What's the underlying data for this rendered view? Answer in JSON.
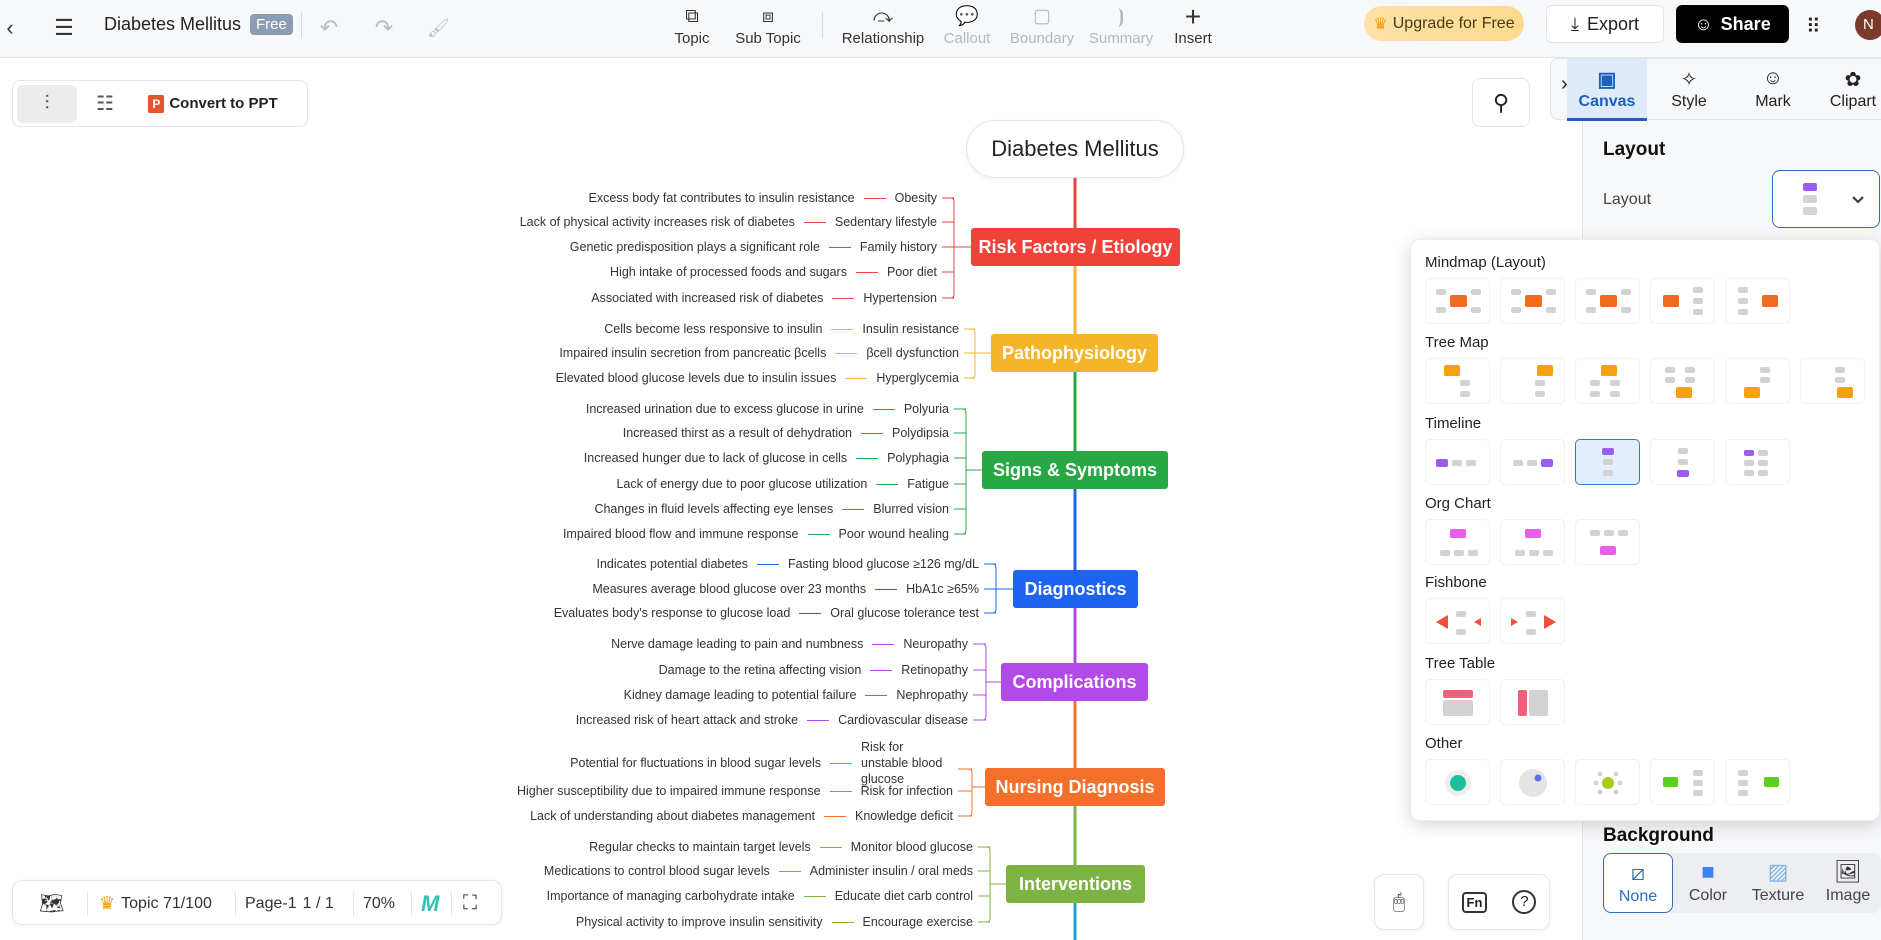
{
  "topbar": {
    "title": "Diabetes Mellitus",
    "badge": "Free",
    "tools": [
      {
        "label": "Topic",
        "icon": "topic-icon"
      },
      {
        "label": "Sub Topic",
        "icon": "subtopic-icon"
      },
      {
        "label": "Relationship",
        "icon": "relationship-icon"
      },
      {
        "label": "Callout",
        "icon": "callout-icon",
        "disabled": true
      },
      {
        "label": "Boundary",
        "icon": "boundary-icon",
        "disabled": true
      },
      {
        "label": "Summary",
        "icon": "summary-icon",
        "disabled": true
      },
      {
        "label": "Insert",
        "icon": "plus-icon"
      }
    ],
    "upgrade": "Upgrade for Free",
    "export": "Export",
    "share": "Share",
    "avatar": "N"
  },
  "viewbar": {
    "convert": "Convert to PPT"
  },
  "panel": {
    "tabs": [
      {
        "label": "Canvas",
        "icon": "canvas-icon"
      },
      {
        "label": "Style",
        "icon": "sparkle-icon"
      },
      {
        "label": "Mark",
        "icon": "smiley-icon"
      },
      {
        "label": "Clipart",
        "icon": "clipart-icon"
      }
    ],
    "active_tab": "Canvas",
    "layout_heading": "Layout",
    "layout_label": "Layout",
    "background_heading": "Background",
    "bg_options": [
      {
        "label": "None"
      },
      {
        "label": "Color"
      },
      {
        "label": "Texture"
      },
      {
        "label": "Image"
      }
    ],
    "bg_selected": "None"
  },
  "layout_popup": {
    "sections": [
      {
        "title": "Mindmap (Layout)",
        "items": [
          "mm-both-up",
          "mm-both-down",
          "mm-both-mixed",
          "mm-right",
          "mm-left"
        ],
        "color": "#f26b1d"
      },
      {
        "title": "Tree Map",
        "items": [
          "tree-right",
          "tree-left",
          "tree-both",
          "tree-up-both",
          "tree-up-right",
          "tree-up-left"
        ],
        "color": "#f7a10c"
      },
      {
        "title": "Timeline",
        "items": [
          "tl-h-start",
          "tl-h-end",
          "tl-v-top",
          "tl-v-bottom",
          "tl-snake"
        ],
        "color": "#9c5cf0",
        "selected": 2
      },
      {
        "title": "Org Chart",
        "items": [
          "org-down",
          "org-both",
          "org-up"
        ],
        "color": "#e95ee8"
      },
      {
        "title": "Fishbone",
        "items": [
          "fish-left",
          "fish-right"
        ],
        "color": "#f0503a"
      },
      {
        "title": "Tree Table",
        "items": [
          "table-top",
          "table-left"
        ],
        "color": "#f0607a"
      },
      {
        "title": "Other",
        "items": [
          "circle",
          "bubble",
          "radial",
          "brace-right",
          "brace-left"
        ],
        "color": "#5ccf1e"
      }
    ]
  },
  "bottombar": {
    "topic_count": "Topic 71/100",
    "page": "Page-1",
    "page_count": "1 / 1",
    "zoom": "70%"
  },
  "mindmap": {
    "root": "Diabetes Mellitus",
    "branches": [
      {
        "title": "Risk Factors / Etiology",
        "color": "#f0413a",
        "children": [
          {
            "label": "Obesity",
            "desc": "Excess body fat contributes to insulin resistance"
          },
          {
            "label": "Sedentary lifestyle",
            "desc": "Lack of physical activity increases risk of diabetes"
          },
          {
            "label": "Family history",
            "desc": "Genetic predisposition plays a significant role"
          },
          {
            "label": "Poor diet",
            "desc": "High intake of processed foods and sugars"
          },
          {
            "label": "Hypertension",
            "desc": "Associated with increased risk of diabetes"
          }
        ]
      },
      {
        "title": "Pathophysiology",
        "color": "#f5b52a",
        "children": [
          {
            "label": "Insulin resistance",
            "desc": "Cells become less responsive to insulin"
          },
          {
            "label": "βcell dysfunction",
            "desc": "Impaired insulin secretion from pancreatic βcells"
          },
          {
            "label": "Hyperglycemia",
            "desc": "Elevated blood glucose levels due to insulin issues"
          }
        ]
      },
      {
        "title": "Signs & Symptoms",
        "color": "#27a845",
        "children": [
          {
            "label": "Polyuria",
            "desc": "Increased urination due to excess glucose in urine"
          },
          {
            "label": "Polydipsia",
            "desc": "Increased thirst as a result of dehydration"
          },
          {
            "label": "Polyphagia",
            "desc": "Increased hunger due to lack of glucose in cells"
          },
          {
            "label": "Fatigue",
            "desc": "Lack of energy due to poor glucose utilization"
          },
          {
            "label": "Blurred vision",
            "desc": "Changes in fluid levels affecting eye lenses"
          },
          {
            "label": "Poor wound healing",
            "desc": "Impaired blood flow and immune response"
          }
        ]
      },
      {
        "title": "Diagnostics",
        "color": "#1e63f0",
        "children": [
          {
            "label": "Fasting blood glucose ≥126 mg/dL",
            "desc": "Indicates potential diabetes"
          },
          {
            "label": "HbA1c ≥65%",
            "desc": "Measures average blood glucose over 23 months"
          },
          {
            "label": "Oral glucose tolerance test",
            "desc": "Evaluates body's response to glucose load"
          }
        ]
      },
      {
        "title": "Complications",
        "color": "#b24ae8",
        "children": [
          {
            "label": "Neuropathy",
            "desc": "Nerve damage leading to pain and numbness"
          },
          {
            "label": "Retinopathy",
            "desc": "Damage to the retina affecting vision"
          },
          {
            "label": "Nephropathy",
            "desc": "Kidney damage leading to potential failure"
          },
          {
            "label": "Cardiovascular disease",
            "desc": "Increased risk of heart attack and stroke"
          }
        ]
      },
      {
        "title": "Nursing Diagnosis",
        "color": "#f36f2a",
        "children": [
          {
            "label": "Risk for unstable blood glucose",
            "desc": "Potential for fluctuations in blood sugar levels"
          },
          {
            "label": "Risk for infection",
            "desc": "Higher susceptibility due to impaired immune response"
          },
          {
            "label": "Knowledge deficit",
            "desc": "Lack of understanding about diabetes management"
          }
        ]
      },
      {
        "title": "Interventions",
        "color": "#7cb342",
        "children": [
          {
            "label": "Monitor blood glucose",
            "desc": "Regular checks to maintain target levels"
          },
          {
            "label": "Administer insulin / oral meds",
            "desc": "Medications to control blood sugar levels"
          },
          {
            "label": "Educate diet carb control",
            "desc": "Importance of managing carbohydrate intake"
          },
          {
            "label": "Encourage exercise",
            "desc": "Physical activity to improve insulin sensitivity"
          }
        ]
      }
    ]
  }
}
